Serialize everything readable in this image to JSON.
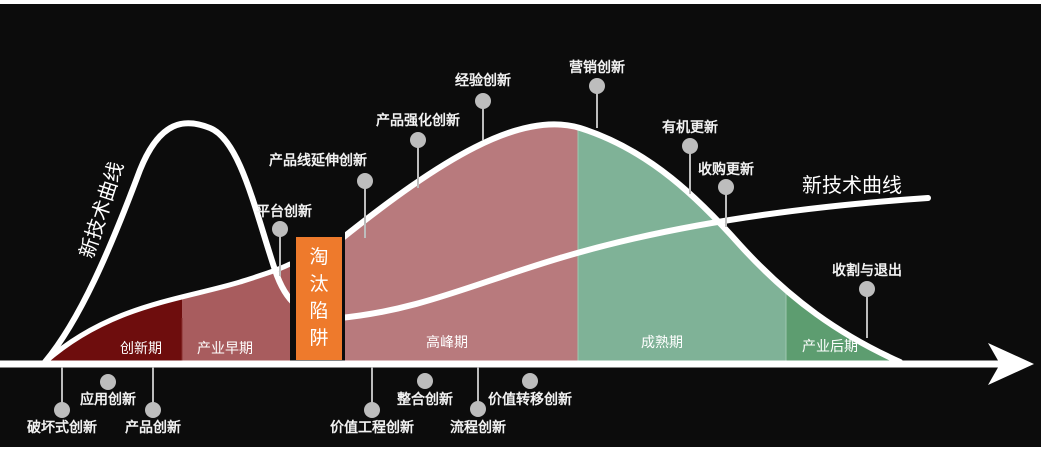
{
  "phases": {
    "innovation": "创新期",
    "early": "产业早期",
    "trap": [
      "淘",
      "汰",
      "陷",
      "阱"
    ],
    "peak": "高峰期",
    "mature": "成熟期",
    "late": "产业后期"
  },
  "curves": {
    "new_tech_left": "新技术曲线",
    "new_tech_right": "新技术曲线"
  },
  "innovations_above": {
    "platform": "平台创新",
    "product_line": "产品线延伸创新",
    "product_enhance": "产品强化创新",
    "experience": "经验创新",
    "marketing": "营销创新",
    "organic_renewal": "有机更新",
    "acquisition_renewal": "收购更新",
    "harvest_exit": "收割与退出"
  },
  "innovations_below": {
    "disruptive": "破坏式创新",
    "application": "应用创新",
    "product": "产品创新",
    "value_engineering": "价值工程创新",
    "integration": "整合创新",
    "process": "流程创新",
    "value_migration": "价值转移创新"
  },
  "colors": {
    "background": "#0c0c0c",
    "innovation": "#6e0d0d",
    "early": "#a85c5e",
    "trap": "#ee7a2c",
    "peak": "#b87a7d",
    "mature": "#7fb297",
    "late": "#5d9d70",
    "pin": "#bdbdbd"
  }
}
